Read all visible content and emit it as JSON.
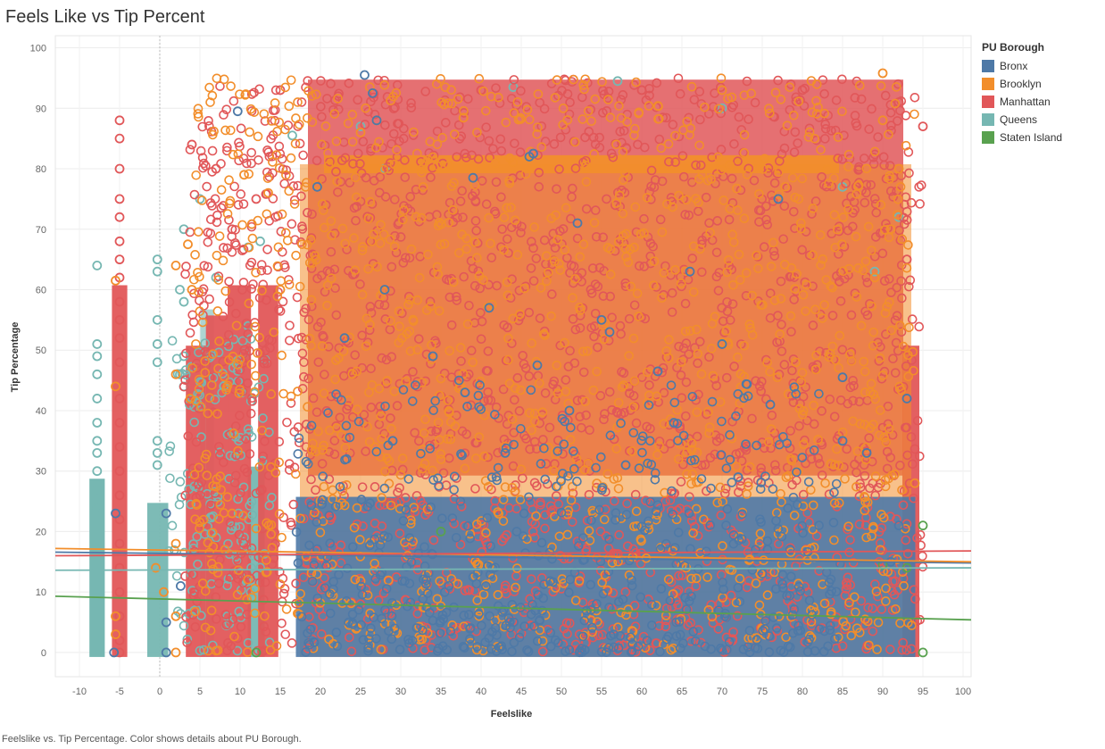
{
  "chart_data": {
    "type": "scatter",
    "title": "Feels Like vs Tip Percent",
    "xlabel": "Feelslike",
    "ylabel": "Tip Percentage",
    "xlim": [
      -13,
      101
    ],
    "ylim": [
      -4,
      102
    ],
    "x_ticks": [
      -10,
      -5,
      0,
      5,
      10,
      15,
      20,
      25,
      30,
      35,
      40,
      45,
      50,
      55,
      60,
      65,
      70,
      75,
      80,
      85,
      90,
      95,
      100
    ],
    "y_ticks": [
      0,
      10,
      20,
      30,
      40,
      50,
      60,
      70,
      80,
      90,
      100
    ],
    "grid": true,
    "legend_title": "PU Borough",
    "legend_position": "right",
    "series": [
      {
        "name": "Bronx",
        "color": "#4e79a7",
        "points": [
          [
            25.5,
            95.5
          ],
          [
            9.7,
            89.5
          ],
          [
            27,
            88
          ],
          [
            26.5,
            92.5
          ],
          [
            46.5,
            82.5
          ],
          [
            39,
            78.5
          ],
          [
            77,
            75
          ],
          [
            19.6,
            77
          ],
          [
            46,
            82
          ],
          [
            52,
            71
          ],
          [
            -5.5,
            23
          ],
          [
            0.8,
            23
          ],
          [
            0.8,
            5
          ],
          [
            -5.7,
            0
          ],
          [
            0.8,
            0
          ],
          [
            2.6,
            11
          ],
          [
            56,
            53
          ],
          [
            70,
            51
          ],
          [
            34,
            49
          ],
          [
            47,
            47.5
          ],
          [
            62,
            46.5
          ],
          [
            85,
            45.5
          ],
          [
            38,
            43
          ],
          [
            51,
            40
          ],
          [
            64,
            38
          ],
          [
            29,
            35
          ],
          [
            43,
            33
          ],
          [
            58,
            31
          ],
          [
            72,
            29
          ],
          [
            88,
            33
          ],
          [
            91,
            15
          ],
          [
            93,
            42
          ],
          [
            92,
            21
          ],
          [
            85,
            35
          ],
          [
            76,
            41
          ],
          [
            55,
            55
          ],
          [
            41,
            57
          ],
          [
            23,
            52
          ],
          [
            28,
            60
          ],
          [
            66,
            63
          ]
        ],
        "bands": [
          [
            17.5,
            93.5,
            0,
            25,
            0.9
          ]
        ],
        "clusters": [
          [
            17,
            85,
            0,
            45,
            500
          ]
        ]
      },
      {
        "name": "Brooklyn",
        "color": "#f28e2b",
        "points": [
          [
            90,
            95.8
          ],
          [
            70,
            93
          ],
          [
            27,
            88
          ],
          [
            21,
            80.5
          ],
          [
            25,
            86
          ],
          [
            -5.5,
            61.5
          ],
          [
            -5.5,
            44
          ],
          [
            -5.5,
            6
          ],
          [
            -5.5,
            3
          ],
          [
            2,
            64
          ],
          [
            2,
            46
          ],
          [
            2,
            18
          ],
          [
            2,
            6
          ],
          [
            2,
            0
          ],
          [
            0.5,
            10
          ],
          [
            -0.5,
            14
          ],
          [
            9,
            23
          ],
          [
            10.5,
            79
          ],
          [
            13.5,
            76
          ],
          [
            92,
            80
          ],
          [
            94,
            28
          ],
          [
            89,
            62
          ],
          [
            91,
            70
          ],
          [
            90,
            88
          ],
          [
            3.5,
            67.5
          ],
          [
            4,
            60
          ],
          [
            3.8,
            42
          ],
          [
            15,
            60
          ]
        ],
        "bands": [
          [
            21,
            84,
            80,
            81.5,
            0.95
          ],
          [
            18,
            93,
            0,
            80,
            0.55
          ]
        ],
        "clusters": [
          [
            4,
            94,
            0,
            95,
            1200
          ]
        ]
      },
      {
        "name": "Manhattan",
        "color": "#e15759",
        "points": [
          [
            -5,
            88
          ],
          [
            -5,
            85
          ],
          [
            -5,
            80
          ],
          [
            -5,
            75
          ],
          [
            -5,
            72
          ],
          [
            -5,
            68
          ],
          [
            -5,
            65
          ],
          [
            -5,
            62
          ],
          [
            -5,
            58
          ],
          [
            -5,
            55
          ],
          [
            -5,
            52
          ],
          [
            -5,
            48
          ],
          [
            -5,
            42
          ],
          [
            -5,
            38
          ],
          [
            -5,
            34
          ],
          [
            -5,
            30
          ],
          [
            -5,
            26
          ],
          [
            -5,
            22
          ],
          [
            -5,
            18
          ],
          [
            -5,
            14
          ],
          [
            -5,
            10
          ],
          [
            -5,
            6
          ],
          [
            -5,
            2
          ],
          [
            -5,
            0
          ],
          [
            15,
            93
          ],
          [
            40,
            93
          ],
          [
            60,
            93
          ],
          [
            80,
            93
          ],
          [
            92,
            91
          ],
          [
            95,
            87
          ],
          [
            93,
            65
          ],
          [
            4,
            84
          ],
          [
            7,
            80
          ],
          [
            9,
            70
          ],
          [
            12,
            75
          ]
        ],
        "bands": [
          [
            -5.4,
            -4.6,
            0,
            60,
            0.95
          ],
          [
            3.8,
            5.2,
            0,
            50,
            0.95
          ],
          [
            6.3,
            7.9,
            0,
            55,
            0.95
          ],
          [
            9,
            10.8,
            0,
            60,
            0.95
          ],
          [
            12.8,
            14.2,
            0,
            60,
            0.95
          ],
          [
            19,
            92,
            30,
            94,
            0.85
          ],
          [
            93,
            94,
            0,
            50,
            0.95
          ]
        ],
        "clusters": [
          [
            3,
            95,
            0,
            95,
            1800
          ]
        ]
      },
      {
        "name": "Queens",
        "color": "#76b7b2",
        "points": [
          [
            -7.8,
            64
          ],
          [
            -7.8,
            51
          ],
          [
            -7.8,
            49
          ],
          [
            -7.8,
            46
          ],
          [
            -7.8,
            42
          ],
          [
            -7.8,
            38
          ],
          [
            -7.8,
            35
          ],
          [
            -7.8,
            33
          ],
          [
            -7.8,
            30
          ],
          [
            -7.8,
            27
          ],
          [
            -7.8,
            24
          ],
          [
            -0.3,
            65
          ],
          [
            -0.3,
            63
          ],
          [
            -0.3,
            55
          ],
          [
            -0.3,
            51
          ],
          [
            -0.3,
            48
          ],
          [
            -0.3,
            35
          ],
          [
            -0.3,
            33
          ],
          [
            -0.3,
            31
          ],
          [
            2.5,
            60
          ],
          [
            2.5,
            46
          ],
          [
            3,
            70
          ],
          [
            3,
            58
          ],
          [
            3,
            49
          ],
          [
            3,
            44
          ],
          [
            5,
            75
          ],
          [
            7,
            62
          ],
          [
            11,
            67
          ],
          [
            44,
            93.5
          ],
          [
            57,
            94.5
          ],
          [
            25,
            87
          ],
          [
            16.5,
            85.5
          ],
          [
            28,
            80
          ],
          [
            11,
            54
          ],
          [
            12.5,
            68
          ],
          [
            85,
            77
          ],
          [
            89,
            63
          ],
          [
            92,
            72
          ],
          [
            70,
            90
          ]
        ],
        "bands": [
          [
            -8.2,
            -7.4,
            0,
            28,
            1
          ],
          [
            -1,
            0.5,
            0,
            24,
            0.95
          ],
          [
            11.5,
            12.5,
            0,
            30,
            0.95
          ],
          [
            5.6,
            6.2,
            0,
            56,
            0.6
          ]
        ],
        "clusters": [
          [
            1,
            14,
            0,
            52,
            150
          ]
        ]
      },
      {
        "name": "Staten Island",
        "color": "#59a14f",
        "points": [
          [
            95,
            21
          ],
          [
            95,
            0
          ],
          [
            93,
            14
          ],
          [
            12,
            0
          ],
          [
            90,
            14.5
          ],
          [
            35,
            20
          ]
        ],
        "bands": [],
        "clusters": []
      }
    ],
    "trend_lines": [
      {
        "name": "Bronx",
        "color": "#4e79a7",
        "start": [
          -13,
          16.6
        ],
        "end": [
          101,
          14.8
        ]
      },
      {
        "name": "Brooklyn",
        "color": "#f28e2b",
        "start": [
          -13,
          17.2
        ],
        "end": [
          101,
          15.0
        ]
      },
      {
        "name": "Manhattan",
        "color": "#e15759",
        "start": [
          -13,
          16.0
        ],
        "end": [
          101,
          16.8
        ]
      },
      {
        "name": "Queens",
        "color": "#76b7b2",
        "start": [
          -13,
          13.6
        ],
        "end": [
          101,
          14.0
        ]
      },
      {
        "name": "Staten Island",
        "color": "#59a14f",
        "start": [
          -13,
          9.3
        ],
        "end": [
          101,
          5.4
        ]
      }
    ]
  },
  "caption": "Feelslike vs. Tip Percentage.  Color shows details about PU Borough."
}
